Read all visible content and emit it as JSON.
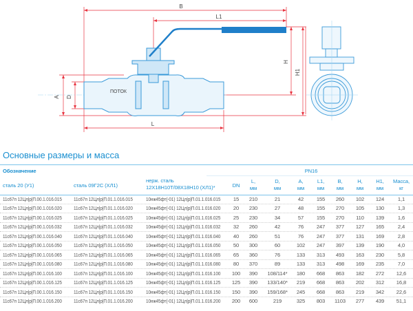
{
  "drawing": {
    "dims": {
      "B": "B",
      "L1": "L1",
      "H": "H",
      "H1": "H1",
      "A": "A",
      "D": "D",
      "L": "L"
    },
    "flow_label": "ПОТОК",
    "colors": {
      "body": "#3a9ad9",
      "handle": "#1f7fc9",
      "dimension": "#e8333f"
    }
  },
  "section_title": "Основные размеры и масса",
  "table": {
    "designation_label": "Обозначение",
    "pressure_label": "PN16",
    "headers": {
      "steel20": "сталь 20 (У1)",
      "steel09": "сталь 09Г2С (ХЛ1)",
      "stainless_1": "нерж. сталь",
      "stainless_2": "12Х18Н10Т/08Х18Н10 (ХЛ1)*",
      "DN": "DN",
      "L": [
        "L,",
        "мм"
      ],
      "D": [
        "D,",
        "мм"
      ],
      "A": [
        "A,",
        "мм"
      ],
      "L1": [
        "L1,",
        "мм"
      ],
      "B": [
        "B,",
        "мм"
      ],
      "H": [
        "H,",
        "мм"
      ],
      "H1": [
        "H1,",
        "мм"
      ],
      "mass": [
        "Масса,",
        "кг"
      ]
    },
    "rows": [
      [
        "11с67п 12Цл|р|П.00.1.016.015",
        "11с67п 12Цл|р|П.01.1.016.015",
        "10нж45фт(-01) 12Цл|р|П.01.1.016.015",
        "15",
        "210",
        "21",
        "42",
        "155",
        "260",
        "102",
        "124",
        "1,1"
      ],
      [
        "11с67п 12Цл|р|П.00.1.016.020",
        "11с67п 12Цл|р|П.01.1.016.020",
        "10нж45фт(-01) 12Цл|р|П.01.1.016.020",
        "20",
        "230",
        "27",
        "48",
        "155",
        "270",
        "105",
        "130",
        "1,3"
      ],
      [
        "11с67п 12Цл|р|П.00.1.016.025",
        "11с67п 12Цл|р|П.01.1.016.025",
        "10нж45фт(-01) 12Цл|р|П.01.1.016.025",
        "25",
        "230",
        "34",
        "57",
        "155",
        "270",
        "110",
        "139",
        "1,6"
      ],
      [
        "11с67п 12Цл|р|П.00.1.016.032",
        "11с67п 12Цл|р|П.01.1.016.032",
        "10нж45фт(-01) 12Цл|р|П.01.1.016.032",
        "32",
        "260",
        "42",
        "76",
        "247",
        "377",
        "127",
        "165",
        "2,4"
      ],
      [
        "11с67п 12Цл|р|П.00.1.016.040",
        "11с67п 12Цл|р|П.01.1.016.040",
        "10нж45фт(-01) 12Цл|р|П.01.1.016.040",
        "40",
        "260",
        "51",
        "76",
        "247",
        "377",
        "131",
        "169",
        "2,8"
      ],
      [
        "11с67п 12Цл|р|П.00.1.016.050",
        "11с67п 12Цл|р|П.01.1.016.050",
        "10нж45фт(-01) 12Цл|р|П.01.1.016.050",
        "50",
        "300",
        "60",
        "102",
        "247",
        "397",
        "139",
        "190",
        "4,0"
      ],
      [
        "11с67п 12Цл|р|П.00.1.016.065",
        "11с67п 12Цл|р|П.01.1.016.065",
        "10нж45фт(-01) 12Цл|р|П.01.1.016.065",
        "65",
        "360",
        "76",
        "133",
        "313",
        "493",
        "163",
        "230",
        "5,8"
      ],
      [
        "11с67п 12Цл|р|П.00.1.016.080",
        "11с67п 12Цл|р|П.01.1.016.080",
        "10нж45фт(-01) 12Цл|р|П.01.1.016.080",
        "80",
        "370",
        "89",
        "133",
        "313",
        "498",
        "169",
        "235",
        "7,0"
      ],
      [
        "11с67п 12Цл|р|П.00.1.016.100",
        "11с67п 12Цл|р|П.01.1.016.100",
        "10нж45фт(-01) 12Цл|р|П.01.1.016.100",
        "100",
        "390",
        "108/114*",
        "180",
        "668",
        "863",
        "182",
        "272",
        "12,6"
      ],
      [
        "11с67п 12Цл|р|П.00.1.016.125",
        "11с67п 12Цл|р|П.01.1.016.125",
        "10нж45фт(-01) 12Цл|р|П.01.1.016.125",
        "125",
        "390",
        "133/140*",
        "219",
        "668",
        "863",
        "202",
        "312",
        "16,8"
      ],
      [
        "11с67п 12Цл|р|П.00.1.016.150",
        "11с67п 12Цл|р|П.01.1.016.150",
        "10нж45фт(-01) 12Цл|р|П.01.1.016.150",
        "150",
        "390",
        "159/168*",
        "245",
        "668",
        "863",
        "219",
        "342",
        "22,6"
      ],
      [
        "11с67п 12Цл|р|П.00.1.016.200",
        "11с67п 12Цл|р|П.01.1.016.200",
        "10нж45фт(-01) 12Цл|р|П.01.1.016.200",
        "200",
        "600",
        "219",
        "325",
        "803",
        "1103",
        "277",
        "439",
        "51,1"
      ]
    ]
  }
}
